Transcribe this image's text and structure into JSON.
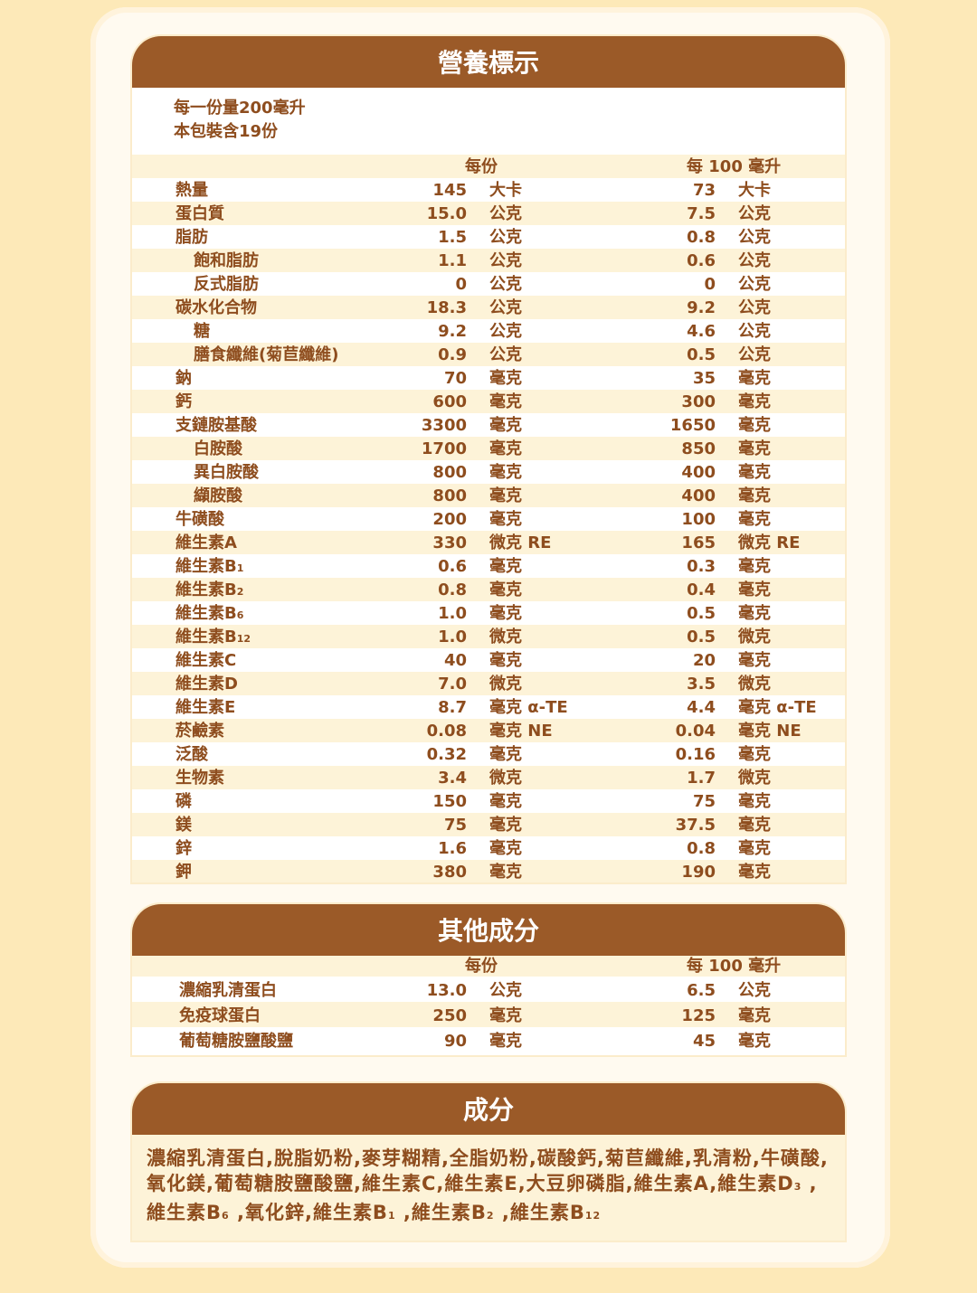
{
  "colors": {
    "header": "#9b5a28",
    "text": "#8e4d1e",
    "stripe": "#fdf3d8",
    "background": "#fde9b8"
  },
  "nutrition": {
    "title": "營養標示",
    "serving_size": "每一份量200毫升",
    "servings_per_pack": "本包裝含19份",
    "col_per_serving": "每份",
    "col_per_100": "每 100 毫升",
    "rows": [
      {
        "name": "熱量",
        "v1": "145",
        "u1": "大卡",
        "v2": "73",
        "u2": "大卡"
      },
      {
        "name": "蛋白質",
        "v1": "15.0",
        "u1": "公克",
        "v2": "7.5",
        "u2": "公克"
      },
      {
        "name": "脂肪",
        "v1": "1.5",
        "u1": "公克",
        "v2": "0.8",
        "u2": "公克"
      },
      {
        "name": "飽和脂肪",
        "indent": true,
        "v1": "1.1",
        "u1": "公克",
        "v2": "0.6",
        "u2": "公克"
      },
      {
        "name": "反式脂肪",
        "indent": true,
        "v1": "0",
        "u1": "公克",
        "v2": "0",
        "u2": "公克"
      },
      {
        "name": "碳水化合物",
        "v1": "18.3",
        "u1": "公克",
        "v2": "9.2",
        "u2": "公克"
      },
      {
        "name": "糖",
        "indent": true,
        "v1": "9.2",
        "u1": "公克",
        "v2": "4.6",
        "u2": "公克"
      },
      {
        "name": "膳食纖維(菊苣纖維)",
        "indent": true,
        "v1": "0.9",
        "u1": "公克",
        "v2": "0.5",
        "u2": "公克"
      },
      {
        "name": "鈉",
        "v1": "70",
        "u1": "毫克",
        "v2": "35",
        "u2": "毫克"
      },
      {
        "name": "鈣",
        "v1": "600",
        "u1": "毫克",
        "v2": "300",
        "u2": "毫克"
      },
      {
        "name": "支鏈胺基酸",
        "v1": "3300",
        "u1": "毫克",
        "v2": "1650",
        "u2": "毫克"
      },
      {
        "name": "白胺酸",
        "indent": true,
        "v1": "1700",
        "u1": "毫克",
        "v2": "850",
        "u2": "毫克"
      },
      {
        "name": "異白胺酸",
        "indent": true,
        "v1": "800",
        "u1": "毫克",
        "v2": "400",
        "u2": "毫克"
      },
      {
        "name": "纈胺酸",
        "indent": true,
        "v1": "800",
        "u1": "毫克",
        "v2": "400",
        "u2": "毫克"
      },
      {
        "name": "牛磺酸",
        "v1": "200",
        "u1": "毫克",
        "v2": "100",
        "u2": "毫克"
      },
      {
        "name": "維生素A",
        "v1": "330",
        "u1": "微克 RE",
        "v2": "165",
        "u2": "微克 RE"
      },
      {
        "name": "維生素B",
        "sub": "1",
        "v1": "0.6",
        "u1": "毫克",
        "v2": "0.3",
        "u2": "毫克"
      },
      {
        "name": "維生素B",
        "sub": "2",
        "v1": "0.8",
        "u1": "毫克",
        "v2": "0.4",
        "u2": "毫克"
      },
      {
        "name": "維生素B",
        "sub": "6",
        "v1": "1.0",
        "u1": "毫克",
        "v2": "0.5",
        "u2": "毫克"
      },
      {
        "name": "維生素B",
        "sub": "12",
        "v1": "1.0",
        "u1": "微克",
        "v2": "0.5",
        "u2": "微克"
      },
      {
        "name": "維生素C",
        "v1": "40",
        "u1": "毫克",
        "v2": "20",
        "u2": "毫克"
      },
      {
        "name": "維生素D",
        "v1": "7.0",
        "u1": "微克",
        "v2": "3.5",
        "u2": "微克"
      },
      {
        "name": "維生素E",
        "v1": "8.7",
        "u1": "毫克 α-TE",
        "v2": "4.4",
        "u2": "毫克 α-TE"
      },
      {
        "name": "菸鹼素",
        "v1": "0.08",
        "u1": "毫克 NE",
        "v2": "0.04",
        "u2": "毫克 NE"
      },
      {
        "name": "泛酸",
        "v1": "0.32",
        "u1": "毫克",
        "v2": "0.16",
        "u2": "毫克"
      },
      {
        "name": "生物素",
        "v1": "3.4",
        "u1": "微克",
        "v2": "1.7",
        "u2": "微克"
      },
      {
        "name": "磷",
        "v1": "150",
        "u1": "毫克",
        "v2": "75",
        "u2": "毫克"
      },
      {
        "name": "鎂",
        "v1": "75",
        "u1": "毫克",
        "v2": "37.5",
        "u2": "毫克"
      },
      {
        "name": "鋅",
        "v1": "1.6",
        "u1": "毫克",
        "v2": "0.8",
        "u2": "毫克"
      },
      {
        "name": "鉀",
        "v1": "380",
        "u1": "毫克",
        "v2": "190",
        "u2": "毫克"
      }
    ]
  },
  "other": {
    "title": "其他成分",
    "col_per_serving": "每份",
    "col_per_100": "每 100 毫升",
    "rows": [
      {
        "name": "濃縮乳清蛋白",
        "v1": "13.0",
        "u1": "公克",
        "v2": "6.5",
        "u2": "公克"
      },
      {
        "name": "免疫球蛋白",
        "v1": "250",
        "u1": "毫克",
        "v2": "125",
        "u2": "毫克"
      },
      {
        "name": "葡萄糖胺鹽酸鹽",
        "v1": "90",
        "u1": "毫克",
        "v2": "45",
        "u2": "毫克"
      }
    ]
  },
  "ingredients": {
    "title": "成分",
    "parts": [
      {
        "t": "濃縮乳清蛋白,脫脂奶粉,麥芽糊精,全脂奶粉,碳酸鈣,菊苣纖維,乳清粉,牛磺酸,氧化鎂,葡萄糖胺鹽酸鹽,維生素C,維生素E,大豆卵磷脂,維生素A,維生素D"
      },
      {
        "sub": "3"
      },
      {
        "t": " ,維生素B"
      },
      {
        "sub": "6"
      },
      {
        "t": " ,氧化鋅,維生素B"
      },
      {
        "sub": "1"
      },
      {
        "t": " ,維生素B"
      },
      {
        "sub": "2"
      },
      {
        "t": " ,維生素B"
      },
      {
        "sub": "12"
      }
    ]
  }
}
